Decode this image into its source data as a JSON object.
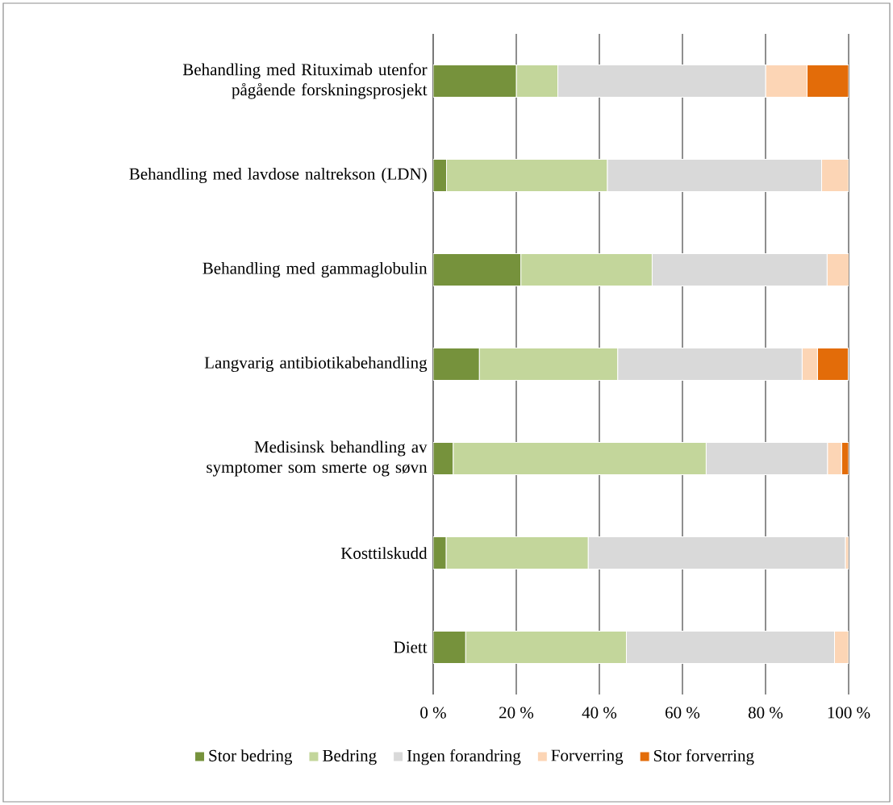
{
  "chart_data": {
    "type": "bar",
    "orientation": "horizontal",
    "stacked": true,
    "categories": [
      "Behandling med Rituximab utenfor pågående forskningsprosjekt",
      "Behandling med lavdose naltrekson (LDN)",
      "Behandling med gammaglobulin",
      "Langvarig antibiotikabehandling",
      "Medisinsk behandling av symptomer som smerte og søvn",
      "Kosttilskudd",
      "Diett"
    ],
    "series": [
      {
        "name": "Stor bedring",
        "color": "#76923c",
        "values": [
          20,
          3.2,
          21.1,
          11.1,
          4.8,
          3.1,
          7.8
        ]
      },
      {
        "name": "Bedring",
        "color": "#c3d69b",
        "values": [
          10,
          38.7,
          31.6,
          33.3,
          60.9,
          34.2,
          38.7
        ]
      },
      {
        "name": "Ingen forandring",
        "color": "#d9d9d9",
        "values": [
          50,
          51.6,
          42.1,
          44.4,
          29.2,
          61.9,
          50.1
        ]
      },
      {
        "name": "Forverring",
        "color": "#fcd5b5",
        "values": [
          10,
          6.5,
          5.3,
          3.7,
          3.4,
          0.8,
          3.4
        ]
      },
      {
        "name": "Stor forverring",
        "color": "#e36c09",
        "values": [
          10,
          0,
          0,
          7.4,
          1.7,
          0,
          0
        ]
      }
    ],
    "xlim": [
      0,
      100
    ],
    "xticks": [
      {
        "value": 0,
        "label": "0 %"
      },
      {
        "value": 20,
        "label": "20 %"
      },
      {
        "value": 40,
        "label": "40 %"
      },
      {
        "value": 60,
        "label": "60 %"
      },
      {
        "value": 80,
        "label": "80 %"
      },
      {
        "value": 100,
        "label": "100 %"
      }
    ],
    "grid": "x",
    "legend": "bottom"
  }
}
